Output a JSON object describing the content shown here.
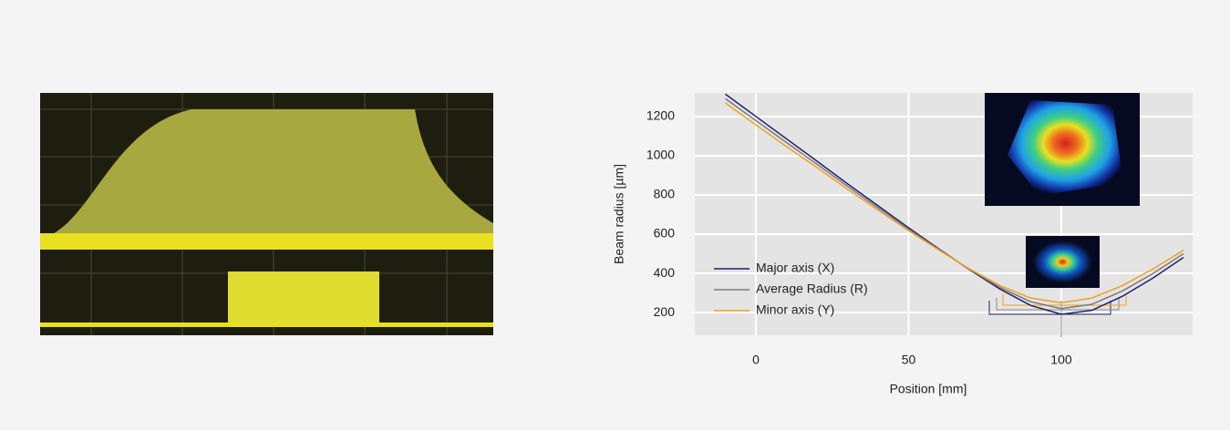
{
  "chart_data": {
    "type": "line",
    "x_label": "Position [mm]",
    "y_label": "Beam radius [µm]",
    "x": [
      -10,
      0,
      10,
      20,
      30,
      40,
      50,
      60,
      70,
      80,
      90,
      100,
      110,
      120,
      130,
      140
    ],
    "series": [
      {
        "name": "Major axis (X)",
        "color": "#1f1f6b",
        "values": [
          1315,
          1201,
          1087,
          973,
          857,
          745,
          633,
          524,
          418,
          319,
          236,
          191,
          211,
          283,
          376,
          481
        ]
      },
      {
        "name": "Average Radius (R)",
        "color": "#7a7a7a",
        "values": [
          1292,
          1180,
          1068,
          957,
          844,
          734,
          626,
          521,
          420,
          328,
          255,
          220,
          242,
          310,
          399,
          500
        ]
      },
      {
        "name": "Minor axis (Y)",
        "color": "#f0a020",
        "values": [
          1270,
          1158,
          1048,
          940,
          830,
          723,
          618,
          518,
          422,
          337,
          274,
          250,
          274,
          337,
          422,
          518
        ]
      }
    ],
    "xlim": [
      -20,
      143
    ],
    "xticks": [
      0,
      50,
      100
    ],
    "ylim": [
      84,
      1321
    ],
    "yticks": [
      200,
      400,
      600,
      800,
      1000,
      1200
    ],
    "grid": true,
    "legend": "lower left"
  }
}
